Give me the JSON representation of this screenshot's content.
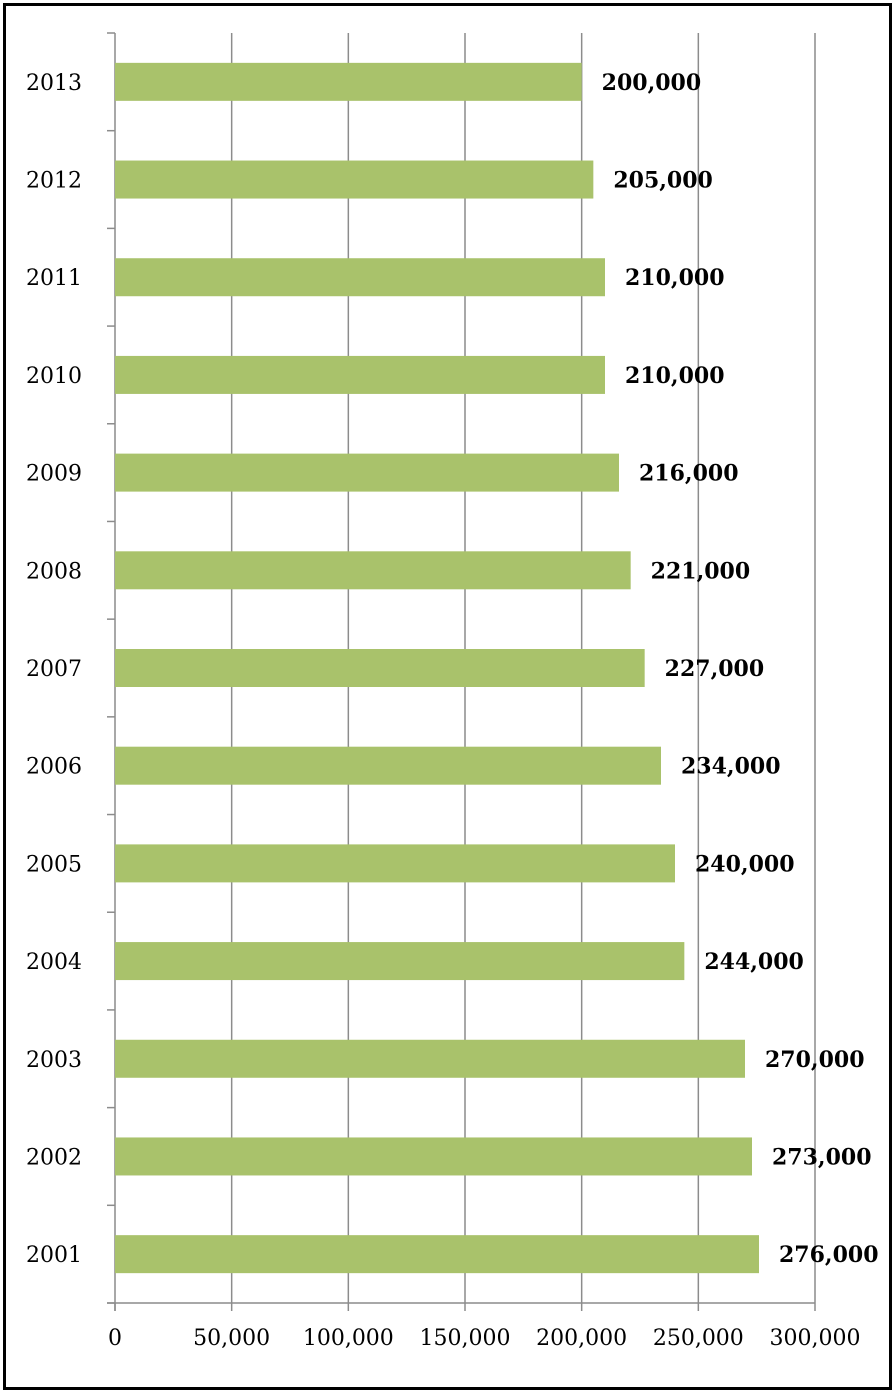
{
  "chart_data": {
    "type": "bar",
    "orientation": "horizontal",
    "categories": [
      "2013",
      "2012",
      "2011",
      "2010",
      "2009",
      "2008",
      "2007",
      "2006",
      "2005",
      "2004",
      "2003",
      "2002",
      "2001"
    ],
    "values": [
      200000,
      205000,
      210000,
      210000,
      216000,
      221000,
      227000,
      234000,
      240000,
      244000,
      270000,
      273000,
      276000
    ],
    "data_labels": [
      "200,000",
      "205,000",
      "210,000",
      "210,000",
      "216,000",
      "221,000",
      "227,000",
      "234,000",
      "240,000",
      "244,000",
      "270,000",
      "273,000",
      "276,000"
    ],
    "x_ticks": [
      0,
      50000,
      100000,
      150000,
      200000,
      250000,
      300000
    ],
    "x_tick_labels": [
      "0",
      "50,000",
      "100,000",
      "150,000",
      "200,000",
      "250,000",
      "300,000"
    ],
    "xlim": [
      0,
      300000
    ],
    "grid": true,
    "legend": "none",
    "bar_color": "#a9c26b",
    "grid_color": "#8c8c8c",
    "title": "",
    "xlabel": "",
    "ylabel": ""
  }
}
